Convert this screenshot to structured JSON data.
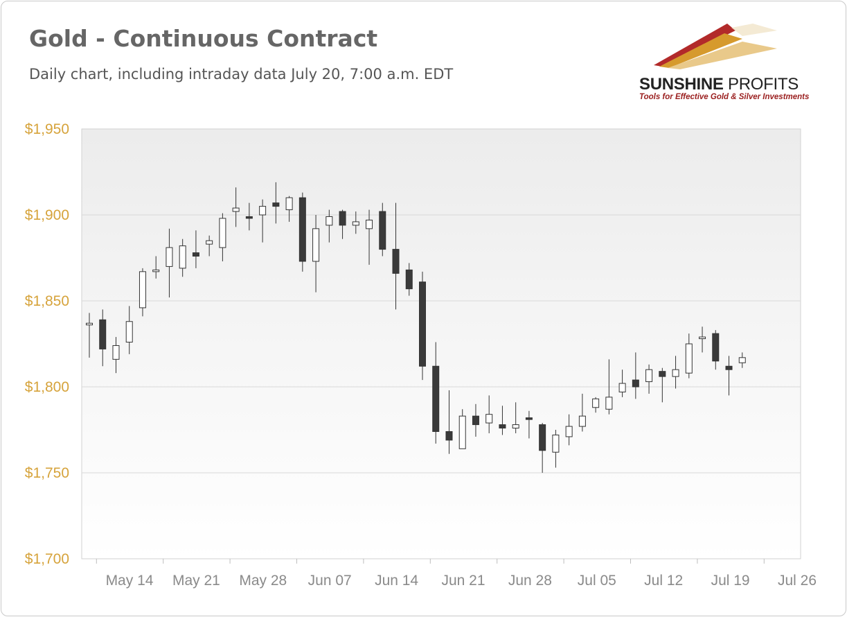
{
  "title": "Gold - Continuous Contract",
  "subtitle": "Daily chart, including intraday data July 20, 7:00 a.m. EDT",
  "logo": {
    "brand_bold": "SUNSHINE",
    "brand_thin": " PROFITS",
    "tagline": "Tools for Effective Gold & Silver Investments",
    "colors": [
      "#b22a2a",
      "#d69a2d",
      "#e9c98a"
    ]
  },
  "colors": {
    "axis_labels": "#d6a33b",
    "x_labels": "#8a8a8a",
    "bear_candle": "#3a3a3a",
    "bull_candle": "#ffffff",
    "gridline": "#d9d9d9"
  },
  "chart_data": {
    "type": "candlestick",
    "ylim": [
      1700,
      1950
    ],
    "y_ticks": [
      {
        "value": 1950,
        "label": "$1,950"
      },
      {
        "value": 1900,
        "label": "$1,900"
      },
      {
        "value": 1850,
        "label": "$1,850"
      },
      {
        "value": 1800,
        "label": "$1,800"
      },
      {
        "value": 1750,
        "label": "$1,750"
      },
      {
        "value": 1700,
        "label": "$1,700"
      }
    ],
    "x_ticks": [
      "May 14",
      "May 21",
      "May 28",
      "Jun 07",
      "Jun 14",
      "Jun 21",
      "Jun 28",
      "Jul 05",
      "Jul 12",
      "Jul 19",
      "Jul 26"
    ],
    "grid": true,
    "legend": "none",
    "candles": [
      {
        "date": "May 10",
        "open": 1836,
        "high": 1843,
        "low": 1817,
        "close": 1837
      },
      {
        "date": "May 11",
        "open": 1839,
        "high": 1845,
        "low": 1812,
        "close": 1822
      },
      {
        "date": "May 12",
        "open": 1816,
        "high": 1829,
        "low": 1808,
        "close": 1824
      },
      {
        "date": "May 13",
        "open": 1826,
        "high": 1847,
        "low": 1819,
        "close": 1838
      },
      {
        "date": "May 14",
        "open": 1846,
        "high": 1869,
        "low": 1841,
        "close": 1867
      },
      {
        "date": "May 17",
        "open": 1867,
        "high": 1876,
        "low": 1863,
        "close": 1868
      },
      {
        "date": "May 18",
        "open": 1870,
        "high": 1892,
        "low": 1852,
        "close": 1881
      },
      {
        "date": "May 19",
        "open": 1869,
        "high": 1886,
        "low": 1864,
        "close": 1882
      },
      {
        "date": "May 20",
        "open": 1878,
        "high": 1891,
        "low": 1869,
        "close": 1876
      },
      {
        "date": "May 21",
        "open": 1883,
        "high": 1888,
        "low": 1876,
        "close": 1885
      },
      {
        "date": "May 24",
        "open": 1881,
        "high": 1901,
        "low": 1873,
        "close": 1898
      },
      {
        "date": "May 25",
        "open": 1902,
        "high": 1916,
        "low": 1893,
        "close": 1904
      },
      {
        "date": "May 26",
        "open": 1899,
        "high": 1907,
        "low": 1891,
        "close": 1898
      },
      {
        "date": "May 27",
        "open": 1900,
        "high": 1909,
        "low": 1884,
        "close": 1905
      },
      {
        "date": "May 28",
        "open": 1907,
        "high": 1919,
        "low": 1895,
        "close": 1905
      },
      {
        "date": "Jun 01",
        "open": 1903,
        "high": 1911,
        "low": 1896,
        "close": 1910
      },
      {
        "date": "Jun 02",
        "open": 1910,
        "high": 1913,
        "low": 1867,
        "close": 1873
      },
      {
        "date": "Jun 03",
        "open": 1873,
        "high": 1900,
        "low": 1855,
        "close": 1892
      },
      {
        "date": "Jun 04",
        "open": 1894,
        "high": 1903,
        "low": 1884,
        "close": 1899
      },
      {
        "date": "Jun 07",
        "open": 1902,
        "high": 1903,
        "low": 1886,
        "close": 1894
      },
      {
        "date": "Jun 08",
        "open": 1894,
        "high": 1902,
        "low": 1889,
        "close": 1896
      },
      {
        "date": "Jun 09",
        "open": 1892,
        "high": 1903,
        "low": 1871,
        "close": 1897
      },
      {
        "date": "Jun 10",
        "open": 1902,
        "high": 1907,
        "low": 1876,
        "close": 1880
      },
      {
        "date": "Jun 11",
        "open": 1880,
        "high": 1907,
        "low": 1845,
        "close": 1866
      },
      {
        "date": "Jun 14",
        "open": 1868,
        "high": 1872,
        "low": 1853,
        "close": 1857
      },
      {
        "date": "Jun 15",
        "open": 1861,
        "high": 1867,
        "low": 1804,
        "close": 1812
      },
      {
        "date": "Jun 16",
        "open": 1812,
        "high": 1826,
        "low": 1767,
        "close": 1774
      },
      {
        "date": "Jun 17",
        "open": 1774,
        "high": 1798,
        "low": 1761,
        "close": 1769
      },
      {
        "date": "Jun 18",
        "open": 1764,
        "high": 1787,
        "low": 1764,
        "close": 1783
      },
      {
        "date": "Jun 21",
        "open": 1783,
        "high": 1790,
        "low": 1771,
        "close": 1778
      },
      {
        "date": "Jun 22",
        "open": 1779,
        "high": 1795,
        "low": 1773,
        "close": 1784
      },
      {
        "date": "Jun 23",
        "open": 1778,
        "high": 1789,
        "low": 1772,
        "close": 1776
      },
      {
        "date": "Jun 24",
        "open": 1776,
        "high": 1791,
        "low": 1773,
        "close": 1778
      },
      {
        "date": "Jun 25",
        "open": 1782,
        "high": 1786,
        "low": 1770,
        "close": 1781
      },
      {
        "date": "Jun 28",
        "open": 1778,
        "high": 1779,
        "low": 1750,
        "close": 1763
      },
      {
        "date": "Jun 29",
        "open": 1762,
        "high": 1775,
        "low": 1753,
        "close": 1772
      },
      {
        "date": "Jun 30",
        "open": 1771,
        "high": 1784,
        "low": 1766,
        "close": 1777
      },
      {
        "date": "Jul 01",
        "open": 1777,
        "high": 1796,
        "low": 1774,
        "close": 1783
      },
      {
        "date": "Jul 02",
        "open": 1788,
        "high": 1794,
        "low": 1785,
        "close": 1793
      },
      {
        "date": "Jul 06",
        "open": 1787,
        "high": 1816,
        "low": 1784,
        "close": 1794
      },
      {
        "date": "Jul 07",
        "open": 1797,
        "high": 1810,
        "low": 1794,
        "close": 1802
      },
      {
        "date": "Jul 08",
        "open": 1804,
        "high": 1820,
        "low": 1793,
        "close": 1800
      },
      {
        "date": "Jul 09",
        "open": 1803,
        "high": 1813,
        "low": 1796,
        "close": 1810
      },
      {
        "date": "Jul 12",
        "open": 1809,
        "high": 1811,
        "low": 1791,
        "close": 1806
      },
      {
        "date": "Jul 13",
        "open": 1806,
        "high": 1818,
        "low": 1799,
        "close": 1810
      },
      {
        "date": "Jul 14",
        "open": 1808,
        "high": 1831,
        "low": 1805,
        "close": 1825
      },
      {
        "date": "Jul 15",
        "open": 1828,
        "high": 1835,
        "low": 1820,
        "close": 1829
      },
      {
        "date": "Jul 16",
        "open": 1831,
        "high": 1833,
        "low": 1810,
        "close": 1815
      },
      {
        "date": "Jul 19",
        "open": 1812,
        "high": 1818,
        "low": 1795,
        "close": 1810
      },
      {
        "date": "Jul 20",
        "open": 1814,
        "high": 1820,
        "low": 1811,
        "close": 1817
      }
    ]
  }
}
